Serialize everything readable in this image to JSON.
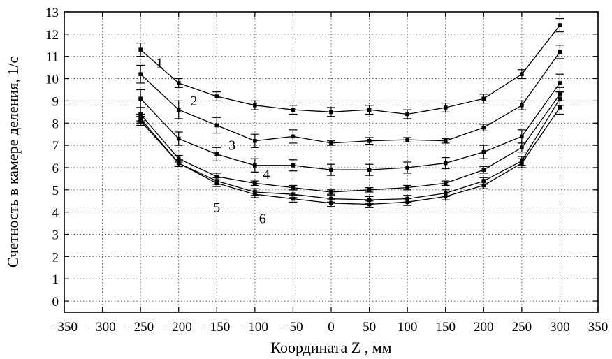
{
  "chart_data": {
    "type": "line",
    "title": "",
    "xlabel": "Координата Z , мм",
    "ylabel": "Счетность в камере деления, 1/с",
    "xlim": [
      -350,
      350
    ],
    "ylim": [
      -0.5,
      13
    ],
    "x_ticks": [
      -350,
      -300,
      -250,
      -200,
      -150,
      -100,
      -50,
      0,
      50,
      100,
      150,
      200,
      250,
      300,
      350
    ],
    "x_tick_labels": [
      "–350",
      "–300",
      "–250",
      "–200",
      "–150",
      "–100",
      "–50",
      "0",
      "50",
      "100",
      "150",
      "200",
      "250",
      "300",
      "350"
    ],
    "y_ticks": [
      0,
      1,
      2,
      3,
      4,
      5,
      6,
      7,
      8,
      9,
      10,
      11,
      12,
      13
    ],
    "y_tick_labels": [
      "0",
      "1",
      "2",
      "3",
      "4",
      "5",
      "6",
      "7",
      "8",
      "9",
      "10",
      "11",
      "12",
      "13"
    ],
    "grid": true,
    "x": [
      -250,
      -200,
      -150,
      -100,
      -50,
      0,
      50,
      100,
      150,
      200,
      250,
      300
    ],
    "series": [
      {
        "name": "1",
        "values": [
          11.3,
          9.8,
          9.2,
          8.8,
          8.6,
          8.5,
          8.6,
          8.4,
          8.7,
          9.1,
          10.2,
          12.4
        ],
        "errors": [
          0.3,
          0.2,
          0.2,
          0.2,
          0.2,
          0.2,
          0.2,
          0.2,
          0.2,
          0.2,
          0.2,
          0.3
        ]
      },
      {
        "name": "2",
        "values": [
          10.2,
          8.6,
          7.9,
          7.2,
          7.4,
          7.1,
          7.2,
          7.25,
          7.2,
          7.8,
          8.8,
          11.2
        ],
        "errors": [
          0.4,
          0.4,
          0.35,
          0.3,
          0.3,
          0.1,
          0.15,
          0.1,
          0.1,
          0.15,
          0.2,
          0.3
        ]
      },
      {
        "name": "3",
        "values": [
          9.1,
          7.3,
          6.6,
          6.1,
          6.1,
          5.9,
          5.9,
          6.0,
          6.2,
          6.7,
          7.4,
          9.8
        ],
        "errors": [
          0.4,
          0.3,
          0.3,
          0.3,
          0.25,
          0.25,
          0.25,
          0.25,
          0.25,
          0.3,
          0.3,
          0.4
        ]
      },
      {
        "name": "4",
        "values": [
          8.4,
          6.4,
          5.6,
          5.3,
          5.1,
          4.9,
          5.0,
          5.1,
          5.3,
          5.9,
          6.9,
          9.3
        ],
        "errors": [
          0.3,
          0.15,
          0.15,
          0.1,
          0.1,
          0.1,
          0.1,
          0.1,
          0.1,
          0.15,
          0.2,
          0.3
        ]
      },
      {
        "name": "5",
        "values": [
          8.2,
          6.2,
          5.4,
          4.9,
          4.8,
          4.6,
          4.55,
          4.6,
          4.85,
          5.4,
          6.3,
          9.1
        ],
        "errors": [
          0.2,
          0.15,
          0.15,
          0.15,
          0.15,
          0.15,
          0.15,
          0.15,
          0.15,
          0.15,
          0.2,
          0.3
        ]
      },
      {
        "name": "6",
        "values": [
          8.1,
          6.2,
          5.3,
          4.8,
          4.6,
          4.4,
          4.35,
          4.45,
          4.7,
          5.2,
          6.2,
          8.7
        ],
        "errors": [
          0.2,
          0.15,
          0.15,
          0.15,
          0.15,
          0.15,
          0.15,
          0.15,
          0.15,
          0.15,
          0.2,
          0.3
        ]
      }
    ],
    "annotations": [
      {
        "text": "1",
        "x": -225,
        "y": 10.5
      },
      {
        "text": "2",
        "x": -180,
        "y": 8.8
      },
      {
        "text": "3",
        "x": -130,
        "y": 6.8
      },
      {
        "text": "4",
        "x": -85,
        "y": 5.5
      },
      {
        "text": "5",
        "x": -150,
        "y": 4.0
      },
      {
        "text": "6",
        "x": -90,
        "y": 3.5
      }
    ]
  }
}
